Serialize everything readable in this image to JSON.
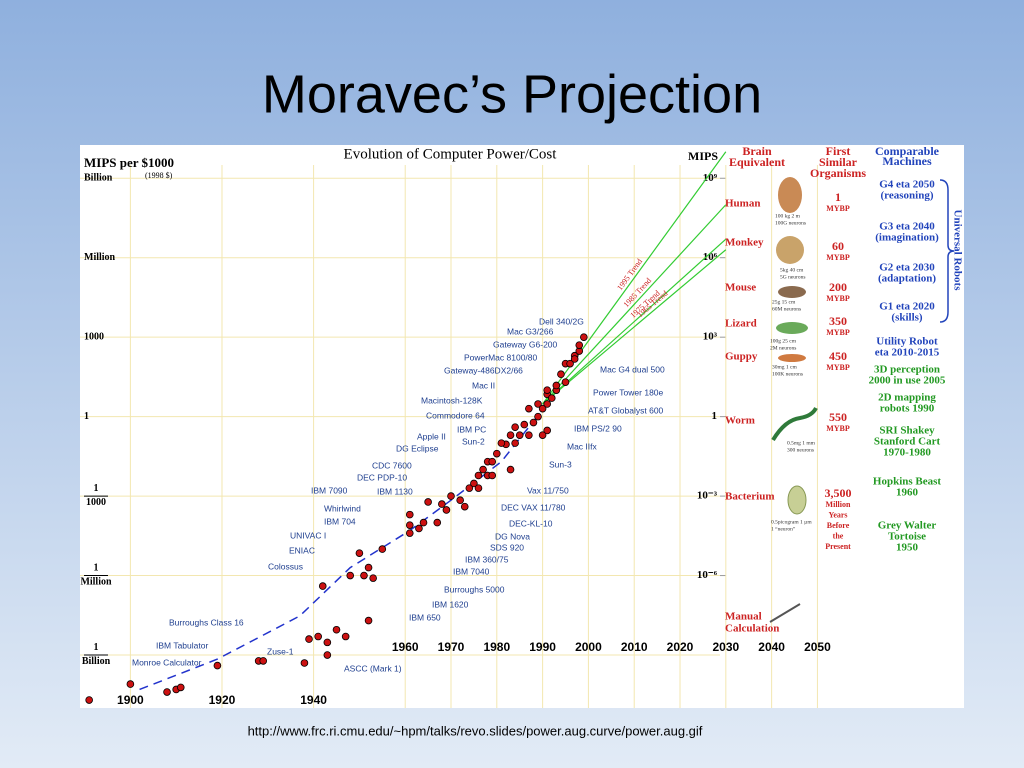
{
  "slide": {
    "title": "Moravec’s Projection",
    "source": "http://www.frc.ri.cmu.edu/~hpm/talks/revo.slides/power.aug.curve/power.aug.gif"
  },
  "chart_data": {
    "type": "scatter",
    "title": "Evolution of Computer Power/Cost",
    "y_label": "MIPS per $1000",
    "y_note": "(1998 $)",
    "y2_label": "MIPS",
    "log_scale": true,
    "grid": true,
    "color": "#cc1111",
    "xlim": [
      1889,
      2082
    ],
    "ylim": [
      1e-11,
      18000000000.0
    ],
    "y2lim": [
      1e-11,
      18000000000.0
    ],
    "xticks": [
      1900,
      1920,
      1940,
      1960,
      1970,
      1980,
      1990,
      2000,
      2010,
      2020,
      2030,
      2040,
      2050
    ],
    "yticks": [
      {
        "value": 1000000000.0,
        "label": "Billion"
      },
      {
        "value": 1000000.0,
        "label": "Million"
      },
      1000,
      1,
      {
        "value": 0.001,
        "label": "1/1000"
      },
      {
        "value": 1e-06,
        "label": "1/Million"
      },
      {
        "value": 1e-09,
        "label": "1/Billion"
      }
    ],
    "y2ticks": [
      {
        "value": 1000000000.0,
        "label": "10⁹"
      },
      {
        "value": 1000000.0,
        "label": "10⁶"
      },
      {
        "value": 1000,
        "label": "10³"
      },
      1,
      {
        "value": 0.001,
        "label": "10⁻³"
      },
      {
        "value": 1e-06,
        "label": "10⁻⁶"
      }
    ],
    "x": [
      1891,
      1900,
      1908,
      1910,
      1911,
      1919,
      1928,
      1929,
      1938,
      1939,
      1941,
      1943,
      1943,
      1947,
      1945,
      1942,
      1952,
      1948,
      1951,
      1952,
      1953,
      1950,
      1955,
      1961,
      1961,
      1963,
      1961,
      1964,
      1965,
      1967,
      1969,
      1968,
      1970,
      1972,
      1973,
      1974,
      1975,
      1976,
      1976,
      1978,
      1978,
      1979,
      1977,
      1979,
      1980,
      1982,
      1981,
      1983,
      1983,
      1984,
      1984,
      1985,
      1987,
      1986,
      1987,
      1988,
      1989,
      1989,
      1990,
      1991,
      1991,
      1991,
      1991,
      1992,
      1993,
      1993,
      1994,
      1995,
      1995,
      1996,
      1997,
      1997,
      1998,
      1998,
      1999,
      1990
    ],
    "values": [
      2e-11,
      8e-11,
      4e-11,
      5e-11,
      6e-11,
      4e-10,
      6e-10,
      6e-10,
      5e-10,
      4e-09,
      5e-09,
      3e-09,
      1e-09,
      5e-09,
      9e-09,
      4e-07,
      2e-08,
      1e-06,
      1e-06,
      2e-06,
      8e-07,
      7e-06,
      1e-05,
      4e-05,
      8e-05,
      6e-05,
      0.0002,
      0.0001,
      0.0006,
      0.0001,
      0.0003,
      0.0005,
      0.001,
      0.0007,
      0.0004,
      0.002,
      0.003,
      0.002,
      0.006,
      0.006,
      0.02,
      0.02,
      0.01,
      0.006,
      0.04,
      0.09,
      0.1,
      0.01,
      0.2,
      0.1,
      0.4,
      0.2,
      0.2,
      0.5,
      2,
      0.6,
      1,
      3,
      2,
      7,
      0.3,
      3,
      10,
      5,
      10,
      15,
      40,
      20,
      100,
      100,
      200,
      150,
      300,
      500,
      1000,
      0.2
    ],
    "machines": [
      "Dell 340/2G",
      "Mac G3/266",
      "Gateway G6-200",
      "PowerMac 8100/80",
      "Gateway-486DX2/66",
      "Mac II",
      "Macintosh-128K",
      "Commodore 64",
      "IBM PC",
      "Sun-2",
      "Apple II",
      "DG Eclipse",
      "CDC 7600",
      "DEC PDP-10",
      "IBM 7090",
      "IBM 1130",
      "Whirlwind",
      "IBM 704",
      "UNIVAC I",
      "ENIAC",
      "Colossus",
      "Burroughs Class 16",
      "IBM Tabulator",
      "Monroe Calculator",
      "Zuse-1",
      "ASCC (Mark 1)",
      "Mac G4 dual 500",
      "Power Tower 180e",
      "AT&T Globalyst 600",
      "IBM PS/2 90",
      "Mac IIfx",
      "Sun-3",
      "Vax 11/750",
      "DEC VAX 11/780",
      "DEC-KL-10",
      "DG Nova",
      "SDS 920",
      "IBM 360/75",
      "IBM 7040",
      "Burroughs 5000",
      "IBM 1620",
      "IBM 650"
    ],
    "machine_color": "#1f3f8f",
    "trends": [
      {
        "name": "1995 Trend",
        "color": "#33cc33",
        "label_color": "#cc2222",
        "x": [
          1990,
          2030
        ],
        "values": [
          3,
          10000000000.0
        ]
      },
      {
        "name": "1985 Trend",
        "color": "#33cc33",
        "label_color": "#cc2222",
        "x": [
          1990,
          2030
        ],
        "values": [
          3,
          100000000.0
        ]
      },
      {
        "name": "1975 Trend",
        "color": "#33cc33",
        "label_color": "#cc2222",
        "x": [
          1990,
          2030
        ],
        "values": [
          3,
          5000000.0
        ]
      },
      {
        "name": "1965 Trend",
        "color": "#33cc33",
        "label_color": "#cc2222",
        "x": [
          1990,
          2030
        ],
        "values": [
          3,
          2000000.0
        ]
      }
    ],
    "fit": {
      "color": "#2233cc",
      "x": [
        1902,
        1919,
        1937,
        1948,
        1961,
        1970,
        1981,
        1991
      ],
      "values": [
        5e-11,
        7e-10,
        3e-08,
        2e-06,
        5e-05,
        0.0007,
        0.02,
        3
      ]
    }
  },
  "comparison": {
    "brain_header": [
      "Brain",
      "Equivalent"
    ],
    "organism_header": [
      "First",
      "Similar",
      "Organisms"
    ],
    "machine_header": [
      "Comparable",
      "Machines"
    ],
    "robots_label": "Universal Robots",
    "organisms": [
      {
        "name": [
          "Human"
        ],
        "specs": [
          "100 kg   2 m",
          "100G neurons"
        ],
        "age": [
          "1",
          "MYBP"
        ]
      },
      {
        "name": [
          "Monkey"
        ],
        "specs": [
          "5kg  40 cm",
          "5G neurons"
        ],
        "age": [
          "60",
          "MYBP"
        ]
      },
      {
        "name": [
          "Mouse"
        ],
        "specs": [
          "25g    15 cm",
          "60M neurons"
        ],
        "age": [
          "200",
          "MYBP"
        ]
      },
      {
        "name": [
          "Lizard"
        ],
        "specs": [
          "100g  25 cm",
          "2M neurons"
        ],
        "age": [
          "350",
          "MYBP"
        ]
      },
      {
        "name": [
          "Guppy"
        ],
        "specs": [
          "30mg    1 cm",
          "100K neurons"
        ],
        "age": [
          "450",
          "MYBP"
        ]
      },
      {
        "name": [
          "Worm"
        ],
        "specs": [
          "0.5mg  1 mm",
          "300 neurons"
        ],
        "age": [
          "550",
          "MYBP"
        ]
      },
      {
        "name": [
          "Bacterium"
        ],
        "specs": [
          "0.5picogram 1 µm",
          "1 “neuron”"
        ],
        "age": [
          "3,500",
          "Million",
          "Years",
          "Before",
          "the",
          "Present"
        ]
      },
      {
        "name": [
          "Manual",
          "Calculation"
        ]
      }
    ],
    "machines": [
      {
        "lines": [
          "G4 eta 2050",
          "(reasoning)"
        ],
        "color": "#2244bb"
      },
      {
        "lines": [
          "G3 eta 2040",
          "(imagination)"
        ],
        "color": "#2244bb"
      },
      {
        "lines": [
          "G2 eta 2030",
          "(adaptation)"
        ],
        "color": "#2244bb"
      },
      {
        "lines": [
          "G1 eta 2020",
          "(skills)"
        ],
        "color": "#2244bb"
      },
      {
        "lines": [
          "Utility Robot",
          "eta 2010-2015"
        ],
        "color": "#2244bb"
      },
      {
        "lines": [
          "3D perception",
          "2000 in use 2005"
        ],
        "color": "#229922"
      },
      {
        "lines": [
          "2D mapping",
          "robots 1990"
        ],
        "color": "#229922"
      },
      {
        "lines": [
          "SRI Shakey",
          "Stanford Cart",
          "1970-1980"
        ],
        "color": "#229922"
      },
      {
        "lines": [
          "Hopkins Beast",
          "1960"
        ],
        "color": "#229922"
      },
      {
        "lines": [
          "Grey Walter",
          "Tortoise",
          "1950"
        ],
        "color": "#229922"
      }
    ]
  }
}
